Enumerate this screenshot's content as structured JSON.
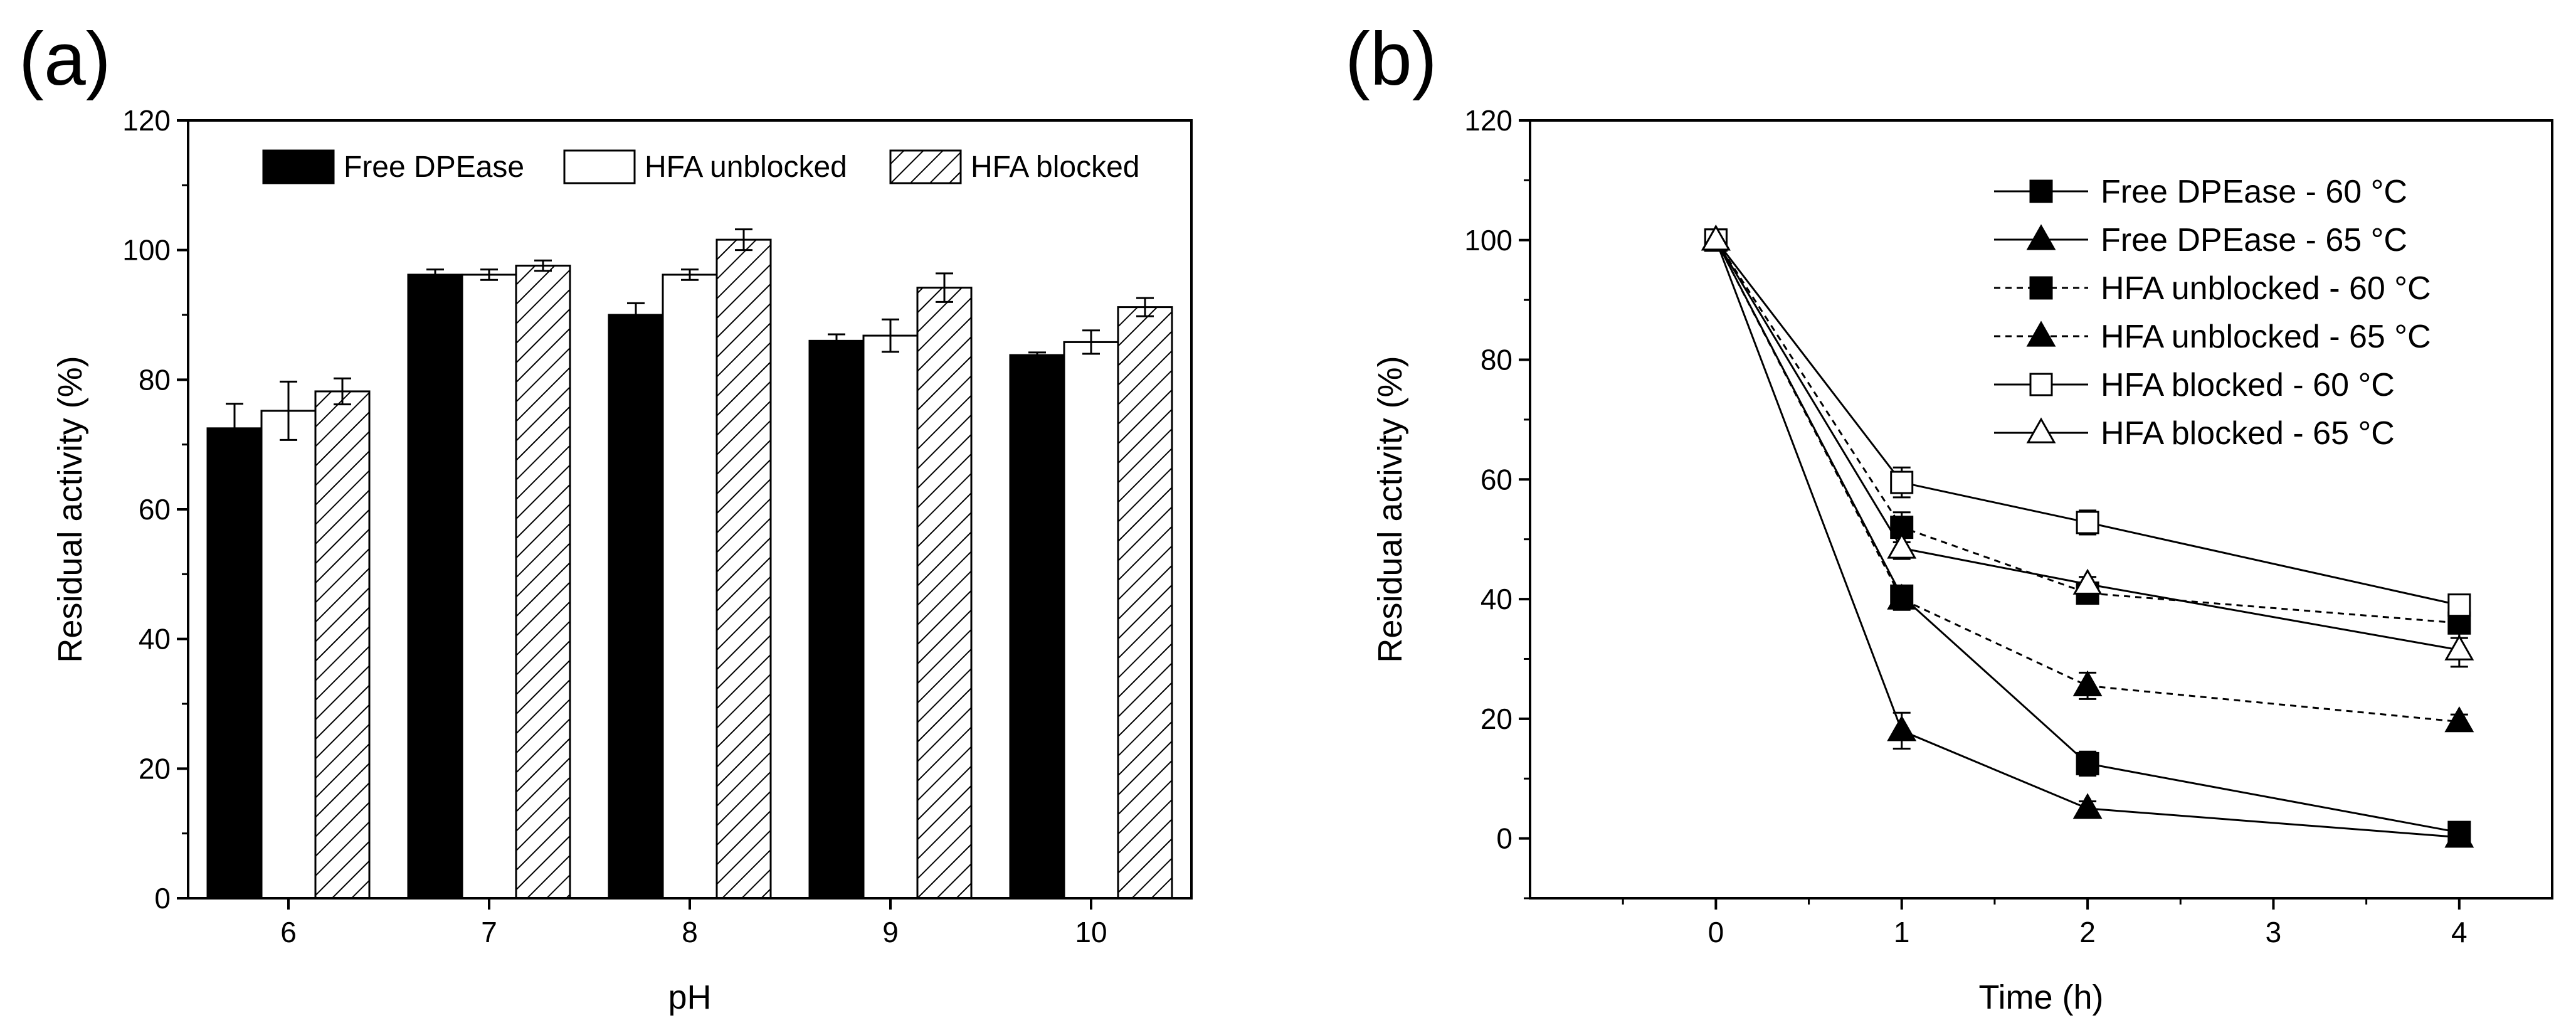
{
  "chart_data": [
    {
      "type": "bar",
      "panel_label": "(a)",
      "title": "",
      "xlabel": "pH",
      "ylabel": "Residual activity (%)",
      "ylim": [
        0,
        120
      ],
      "yticks": [
        0,
        20,
        40,
        60,
        80,
        100,
        120
      ],
      "categories": [
        "6",
        "7",
        "8",
        "9",
        "10"
      ],
      "legend_position": "top",
      "series": [
        {
          "name": "Free DPEase",
          "fill": "solid-black",
          "values": [
            72.5,
            96.2,
            90.0,
            86.0,
            83.8
          ],
          "errors": [
            3.8,
            0.8,
            1.8,
            1.0,
            0.4
          ]
        },
        {
          "name": "HFA unblocked",
          "fill": "white",
          "values": [
            75.2,
            96.2,
            96.2,
            86.8,
            85.8
          ],
          "errors": [
            4.5,
            0.8,
            0.8,
            2.5,
            1.8
          ]
        },
        {
          "name": "HFA blocked",
          "fill": "hatched",
          "values": [
            78.2,
            97.6,
            101.6,
            94.2,
            91.2
          ],
          "errors": [
            2.0,
            0.8,
            1.6,
            2.2,
            1.4
          ]
        }
      ]
    },
    {
      "type": "line",
      "panel_label": "(b)",
      "title": "",
      "xlabel": "Time (h)",
      "ylabel": "Residual activity (%)",
      "xlim": [
        -1,
        4.5
      ],
      "ylim": [
        -10,
        120
      ],
      "xticks": [
        0,
        1,
        2,
        3,
        4
      ],
      "yticks": [
        0,
        20,
        40,
        60,
        80,
        100,
        120
      ],
      "legend_position": "top-right",
      "series": [
        {
          "name": "Free DPEase - 60 °C",
          "line": "solid",
          "marker": "filled-square",
          "x": [
            0,
            1,
            2,
            4
          ],
          "y": [
            100,
            40.5,
            12.5,
            1.0
          ],
          "errors": [
            0,
            1.5,
            2.0,
            1.2
          ]
        },
        {
          "name": "Free DPEase - 65 °C",
          "line": "solid",
          "marker": "filled-triangle",
          "x": [
            0,
            1,
            2,
            4
          ],
          "y": [
            100,
            18.0,
            5.0,
            0.2
          ],
          "errors": [
            0,
            3.0,
            1.2,
            0.5
          ]
        },
        {
          "name": "HFA unblocked - 60 °C",
          "line": "dashed",
          "marker": "filled-square",
          "x": [
            0,
            1,
            2,
            4
          ],
          "y": [
            100,
            52.0,
            41.0,
            36.0
          ],
          "errors": [
            0,
            2.5,
            1.2,
            2.5
          ]
        },
        {
          "name": "HFA unblocked - 65 °C",
          "line": "dashed",
          "marker": "filled-triangle",
          "x": [
            0,
            1,
            2,
            4
          ],
          "y": [
            100,
            40.0,
            25.5,
            19.5
          ],
          "errors": [
            0,
            1.8,
            2.2,
            1.2
          ]
        },
        {
          "name": "HFA blocked - 60 °C",
          "line": "solid",
          "marker": "open-square",
          "x": [
            0,
            1,
            2,
            4
          ],
          "y": [
            100,
            59.5,
            52.8,
            39.0
          ],
          "errors": [
            0,
            2.5,
            2.0,
            1.2
          ]
        },
        {
          "name": "HFA blocked - 65 °C",
          "line": "solid",
          "marker": "open-triangle",
          "x": [
            0,
            1,
            2,
            4
          ],
          "y": [
            100,
            48.5,
            42.5,
            31.5
          ],
          "errors": [
            0,
            1.8,
            1.2,
            2.8
          ]
        }
      ]
    }
  ]
}
